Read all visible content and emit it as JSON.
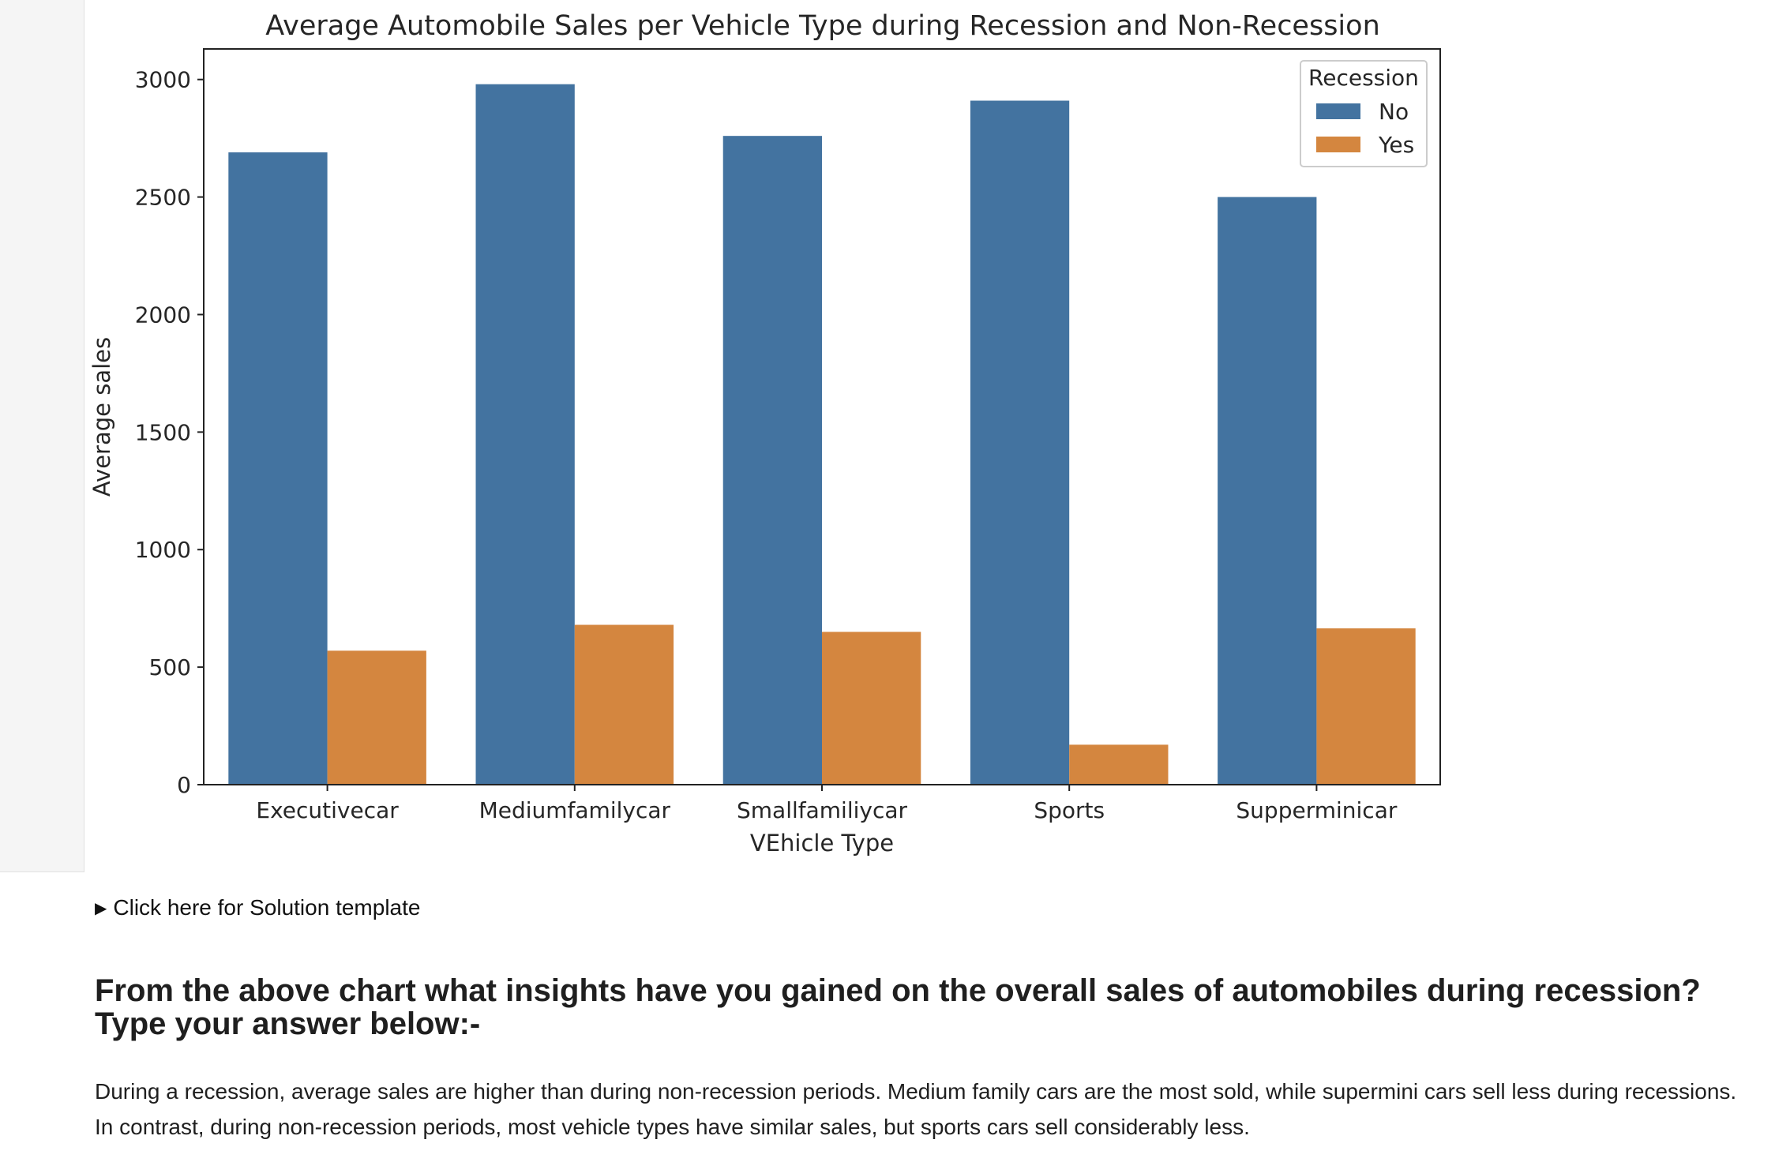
{
  "chart_data": {
    "type": "bar",
    "title": "Average Automobile Sales per Vehicle Type during Recession and Non-Recession",
    "xlabel": "VEhicle Type",
    "ylabel": "Average sales",
    "categories": [
      "Executivecar",
      "Mediumfamilycar",
      "Smallfamiliycar",
      "Sports",
      "Supperminicar"
    ],
    "series": [
      {
        "name": "No",
        "color": "#4373a0",
        "values": [
          2690,
          2980,
          2760,
          2910,
          2500
        ]
      },
      {
        "name": "Yes",
        "color": "#d4863f",
        "values": [
          570,
          680,
          650,
          170,
          665
        ]
      }
    ],
    "ylim": [
      0,
      3130
    ],
    "yticks": [
      0,
      500,
      1000,
      1500,
      2000,
      2500,
      3000
    ],
    "legend": {
      "title": "Recession",
      "placement": "top-right"
    },
    "grid": false
  },
  "details": {
    "summary": "Click here for Solution template"
  },
  "question": {
    "line1": "From the above chart what insights have you gained on the overall sales of automobiles during recession?",
    "line2": "Type your answer below:-"
  },
  "answer": {
    "text": "During a recession, average sales are higher than during non-recession periods. Medium family cars are the most sold, while supermini cars sell less during recessions. In contrast, during non-recession periods, most vehicle types have similar sales, but sports cars sell considerably less."
  }
}
